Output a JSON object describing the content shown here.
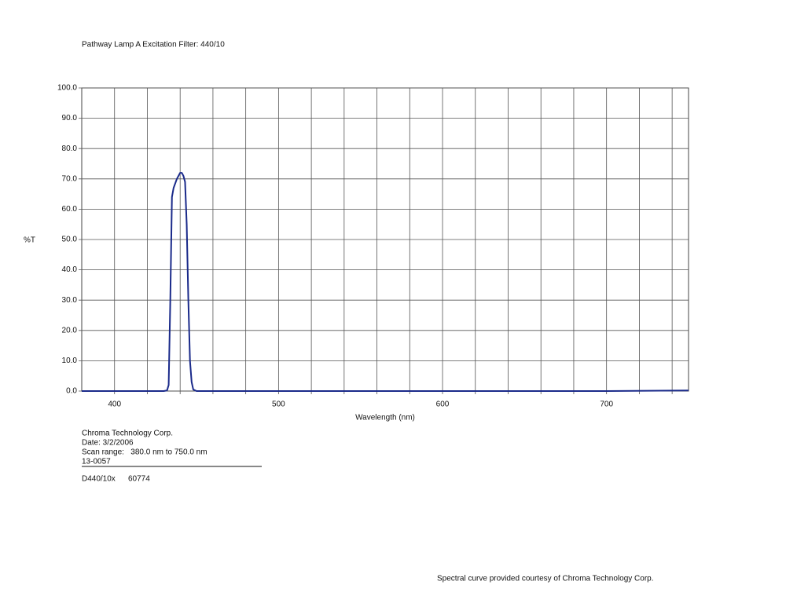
{
  "chart_data": {
    "type": "line",
    "title": "Pathway Lamp A Excitation Filter: 440/10",
    "y_label": "%T",
    "x_label": "Wavelength (nm)",
    "x": [
      380,
      420,
      430,
      432,
      433,
      434,
      435,
      436,
      438,
      440,
      441,
      442,
      443,
      444,
      445,
      446,
      447,
      448,
      450,
      500,
      600,
      700,
      750
    ],
    "series": [
      {
        "color": "#1a2a8a",
        "values": [
          0,
          0,
          0,
          0.2,
          2,
          30,
          64,
          67,
          70,
          72,
          72,
          71,
          69,
          55,
          30,
          10,
          3,
          0.5,
          0,
          0,
          0,
          0,
          0.2
        ]
      }
    ],
    "xlim": [
      380,
      750
    ],
    "xticks": [
      400,
      500,
      600,
      700
    ],
    "x_grid": [
      400,
      420,
      440,
      460,
      480,
      500,
      520,
      540,
      560,
      580,
      600,
      620,
      640,
      660,
      680,
      700,
      720,
      740
    ],
    "ylim": [
      0,
      100
    ],
    "yticks": [
      {
        "value": 0,
        "label": "0.0"
      },
      {
        "value": 10,
        "label": "10.0"
      },
      {
        "value": 20,
        "label": "20.0"
      },
      {
        "value": 30,
        "label": "30.0"
      },
      {
        "value": 40,
        "label": "40.0"
      },
      {
        "value": 50,
        "label": "50.0"
      },
      {
        "value": 60,
        "label": "60.0"
      },
      {
        "value": 70,
        "label": "70.0"
      },
      {
        "value": 80,
        "label": "80.0"
      },
      {
        "value": 90,
        "label": "90.0"
      },
      {
        "value": 100,
        "label": "100.0"
      }
    ],
    "grid": true
  },
  "footer": {
    "company": "Chroma Technology Corp.",
    "date": "Date: 3/2/2006",
    "scan_range": "Scan range:   380.0 nm to 750.0 nm",
    "code": "13-0057",
    "part": "D440/10x",
    "number": "60774",
    "credit": "Spectral curve provided courtesy of Chroma Technology Corp."
  }
}
